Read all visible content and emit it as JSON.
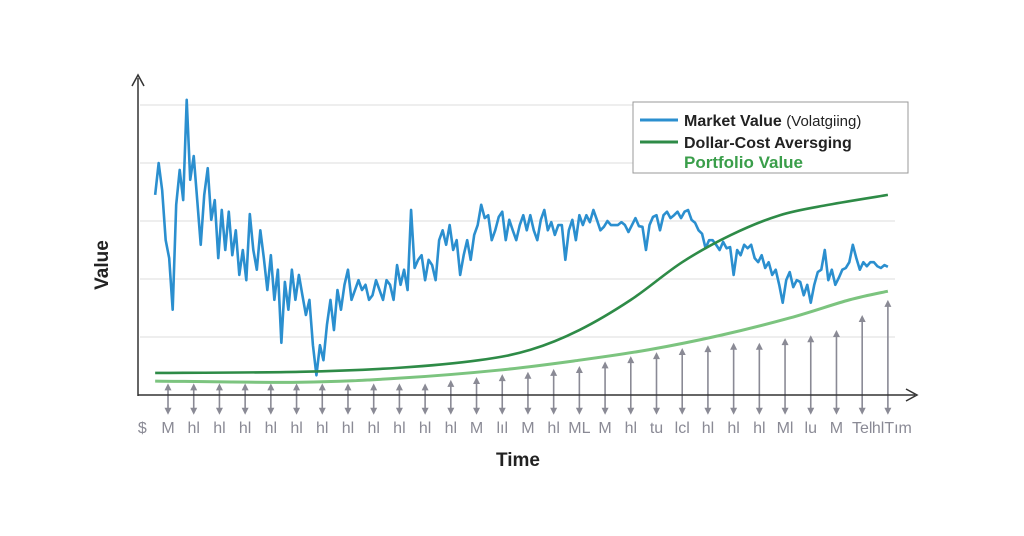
{
  "chart_data": {
    "type": "line",
    "title": "",
    "xlabel": "Time",
    "ylabel": "Value",
    "grid": true,
    "legend_position": "top-right",
    "x_tick_labels": [
      "$",
      "M",
      "hl",
      "hl",
      "hl",
      "hl",
      "hl",
      "hl",
      "hl",
      "hl",
      "hl",
      "hl",
      "hl",
      "M",
      "lıl",
      "M",
      "hl",
      "ML",
      "M",
      "hl",
      "tu",
      "lcl",
      "hl",
      "hl",
      "hl",
      "Ml",
      "lu",
      "M",
      "Tel",
      "hlTım"
    ],
    "colors": {
      "market": "#2b8fcf",
      "dca": "#2e8b47",
      "portfolio": "#7cc47f",
      "arrows": "#8a8a95",
      "axis": "#333333",
      "grid": "#dddddd"
    },
    "legend": [
      {
        "label": "Market Value",
        "suffix": "(Volatgiing)",
        "color": "#2b8fcf",
        "marker": true
      },
      {
        "label": "Dollar-Cost Aversging",
        "suffix": "",
        "color": "#2e8b47",
        "marker": true
      },
      {
        "label": "Portfolio Value",
        "suffix": "",
        "color": "#3a9e4a",
        "marker": false
      }
    ],
    "series": [
      {
        "id": "market",
        "x_range": [
          0.5,
          29.0
        ],
        "values": [
          3.45,
          4.0,
          3.53,
          2.67,
          2.36,
          1.47,
          3.28,
          3.88,
          3.36,
          5.09,
          3.71,
          4.12,
          3.36,
          2.59,
          3.45,
          3.91,
          3.02,
          3.36,
          2.36,
          3.19,
          2.5,
          3.16,
          2.41,
          2.84,
          2.07,
          2.5,
          1.98,
          3.12,
          2.5,
          2.16,
          2.84,
          2.36,
          1.81,
          2.41,
          1.64,
          2.16,
          0.9,
          1.95,
          1.47,
          2.16,
          1.64,
          2.07,
          1.72,
          1.38,
          1.64,
          0.86,
          0.34,
          0.86,
          0.6,
          1.21,
          1.64,
          1.12,
          1.81,
          1.47,
          1.9,
          2.16,
          1.64,
          1.81,
          1.98,
          1.81,
          1.9,
          1.64,
          1.72,
          1.98,
          1.81,
          1.64,
          1.98,
          1.9,
          1.64,
          2.24,
          1.9,
          2.16,
          1.81,
          3.19,
          2.19,
          2.33,
          2.41,
          1.98,
          2.33,
          2.24,
          1.98,
          2.67,
          2.84,
          2.59,
          2.93,
          2.5,
          2.67,
          2.07,
          2.41,
          2.67,
          2.33,
          2.76,
          2.93,
          3.28,
          3.05,
          3.1,
          2.67,
          2.84,
          3.07,
          3.16,
          2.67,
          3.02,
          2.84,
          2.67,
          2.93,
          3.1,
          2.84,
          3.1,
          2.84,
          2.67,
          3.02,
          3.19,
          2.84,
          2.98,
          2.76,
          2.93,
          2.93,
          2.33,
          2.84,
          3.02,
          2.67,
          3.1,
          2.93,
          3.1,
          2.98,
          3.19,
          3.02,
          2.84,
          2.9,
          3.0,
          2.93,
          2.93,
          2.93,
          2.98,
          2.93,
          2.81,
          2.93,
          3.05,
          2.91,
          2.9,
          2.5,
          2.93,
          3.07,
          3.1,
          2.84,
          3.1,
          3.16,
          3.05,
          3.1,
          3.16,
          3.05,
          3.16,
          3.19,
          3.02,
          2.97,
          2.84,
          2.78,
          2.53,
          2.67,
          2.67,
          2.59,
          2.5,
          2.64,
          2.53,
          2.55,
          2.07,
          2.5,
          2.41,
          2.59,
          2.53,
          2.59,
          2.36,
          2.29,
          2.41,
          2.19,
          2.29,
          2.07,
          2.16,
          1.9,
          1.59,
          1.98,
          2.12,
          1.86,
          1.98,
          1.95,
          1.72,
          1.9,
          1.59,
          1.9,
          2.12,
          2.16,
          2.5,
          1.98,
          2.16,
          1.9,
          2.02,
          2.16,
          2.19,
          2.29,
          2.59,
          2.36,
          2.16,
          2.29,
          2.22,
          2.29,
          2.29,
          2.22,
          2.19,
          2.24,
          2.21
        ]
      },
      {
        "id": "dca",
        "x": [
          0.5,
          6.13,
          10.0,
          13.1,
          15.1,
          17.0,
          19.0,
          21.0,
          22.9,
          24.8,
          26.7,
          29.0
        ],
        "values": [
          0.38,
          0.4,
          0.47,
          0.6,
          0.78,
          1.12,
          1.64,
          2.29,
          2.76,
          3.1,
          3.28,
          3.45
        ]
      },
      {
        "id": "portfolio",
        "x": [
          0.5,
          6.13,
          10.0,
          13.9,
          17.0,
          19.7,
          22.5,
          25.2,
          27.5,
          29.0
        ],
        "values": [
          0.24,
          0.22,
          0.29,
          0.43,
          0.6,
          0.78,
          1.03,
          1.33,
          1.64,
          1.79
        ]
      }
    ],
    "contributions": {
      "bottom": -0.34,
      "values": [
        0.2,
        0.2,
        0.2,
        0.2,
        0.2,
        0.2,
        0.2,
        0.2,
        0.2,
        0.2,
        0.2,
        0.26,
        0.31,
        0.36,
        0.4,
        0.45,
        0.5,
        0.58,
        0.67,
        0.74,
        0.81,
        0.86,
        0.9,
        0.9,
        0.98,
        1.03,
        1.12,
        1.38,
        1.64
      ]
    },
    "ylim": [
      0,
      5.5
    ],
    "xlim": [
      -0.2,
      30.3
    ],
    "y_gridlines": [
      1,
      2,
      3,
      4,
      5
    ]
  }
}
